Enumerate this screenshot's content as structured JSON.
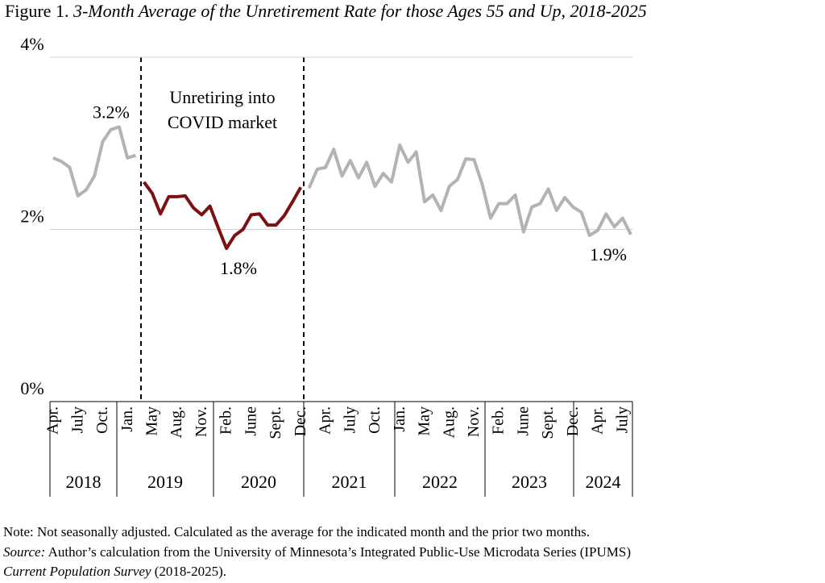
{
  "chart_data": {
    "type": "line",
    "figure_label": "Figure 1.",
    "title": "3-Month Average of the Unretirement Rate for those Ages 55 and Up, 2018-2025",
    "annotation": [
      "Unretiring into",
      "COVID market"
    ],
    "categories": [
      "Apr.",
      null,
      null,
      "July",
      null,
      null,
      "Oct.",
      null,
      null,
      "Jan.",
      null,
      null,
      "May",
      null,
      null,
      "Aug.",
      null,
      null,
      "Nov.",
      null,
      null,
      "Feb.",
      null,
      null,
      "June",
      null,
      null,
      "Sept.",
      null,
      null,
      "Dec.",
      null,
      null,
      "Apr.",
      null,
      null,
      "July",
      null,
      null,
      "Oct.",
      null,
      null,
      "Jan.",
      null,
      null,
      "May",
      null,
      null,
      "Aug.",
      null,
      null,
      "Nov.",
      null,
      null,
      "Feb.",
      null,
      null,
      "June",
      null,
      null,
      "Sept.",
      null,
      null,
      "Dec.",
      null,
      null,
      "Apr.",
      null,
      null,
      "July",
      null
    ],
    "years": [
      "2018",
      "2019",
      "2020",
      "2021",
      "2022",
      "2023",
      "2024"
    ],
    "series": [
      {
        "color": "#b3b3b3",
        "values": [
          2.83,
          2.79,
          2.72,
          2.39,
          2.46,
          2.62,
          3.02,
          3.16,
          3.19,
          2.83,
          2.86,
          null,
          null,
          null,
          null,
          null,
          null,
          null,
          null,
          null,
          null,
          null,
          null,
          null,
          null,
          null,
          null,
          null,
          null,
          null,
          null,
          2.48,
          2.7,
          2.72,
          2.93,
          2.62,
          2.8,
          2.6,
          2.78,
          2.5,
          2.65,
          2.55,
          2.98,
          2.78,
          2.9,
          2.32,
          2.4,
          2.22,
          2.5,
          2.58,
          2.82,
          2.81,
          2.52,
          2.13,
          2.3,
          2.3,
          2.4,
          1.97,
          2.26,
          2.3,
          2.47,
          2.22,
          2.37,
          2.26,
          2.2,
          1.93,
          1.99,
          2.18,
          2.03,
          2.13,
          1.94
        ],
        "value_labels": [
          null,
          null,
          null,
          null,
          null,
          null,
          null,
          null,
          "3.2%",
          null,
          null,
          null,
          null,
          null,
          null,
          null,
          null,
          null,
          null,
          null,
          null,
          null,
          null,
          null,
          null,
          null,
          null,
          null,
          null,
          null,
          null,
          null,
          null,
          null,
          null,
          null,
          null,
          null,
          null,
          null,
          null,
          null,
          null,
          null,
          null,
          null,
          null,
          null,
          null,
          null,
          null,
          null,
          null,
          null,
          null,
          null,
          null,
          null,
          null,
          null,
          null,
          null,
          null,
          null,
          null,
          null,
          null,
          null,
          null,
          null,
          "1.9%"
        ]
      },
      {
        "color": "#7b1113",
        "values": [
          null,
          null,
          null,
          null,
          null,
          null,
          null,
          null,
          null,
          null,
          null,
          2.55,
          2.42,
          2.18,
          2.38,
          2.38,
          2.39,
          2.25,
          2.17,
          2.27,
          2.02,
          1.78,
          1.93,
          2.0,
          2.17,
          2.18,
          2.05,
          2.05,
          2.16,
          2.32,
          2.49,
          null,
          null,
          null,
          null,
          null,
          null,
          null,
          null,
          null,
          null,
          null,
          null,
          null,
          null,
          null,
          null,
          null,
          null,
          null,
          null,
          null,
          null,
          null,
          null,
          null,
          null,
          null,
          null,
          null,
          null,
          null,
          null,
          null,
          null,
          null,
          null,
          null,
          null,
          null,
          null
        ],
        "value_labels": [
          null,
          null,
          null,
          null,
          null,
          null,
          null,
          null,
          null,
          null,
          null,
          null,
          null,
          null,
          null,
          null,
          null,
          null,
          null,
          null,
          null,
          "1.8%",
          null,
          null,
          null,
          null,
          null,
          null,
          null,
          null,
          null,
          null,
          null,
          null,
          null,
          null,
          null,
          null,
          null,
          null,
          null,
          null,
          null,
          null,
          null,
          null,
          null,
          null,
          null,
          null,
          null,
          null,
          null,
          null,
          null,
          null,
          null,
          null,
          null,
          null,
          null,
          null,
          null,
          null,
          null,
          null,
          null,
          null,
          null,
          null,
          null
        ]
      }
    ],
    "ylim": [
      0,
      4
    ],
    "yticks": [
      {
        "value": 0,
        "label": "0%"
      },
      {
        "value": 2,
        "label": "2%"
      },
      {
        "value": 4,
        "label": "4%"
      }
    ],
    "grid": true,
    "note": "Note: Not seasonally adjusted. Calculated as the average for the indicated month and the prior two months.",
    "source_label": "Source:",
    "source": "Author’s calculation from the University of Minnesota’s Integrated Public-Use Microdata Series (IPUMS)",
    "source_title": "Current Population Survey",
    "source_years": "(2018-2025)."
  }
}
